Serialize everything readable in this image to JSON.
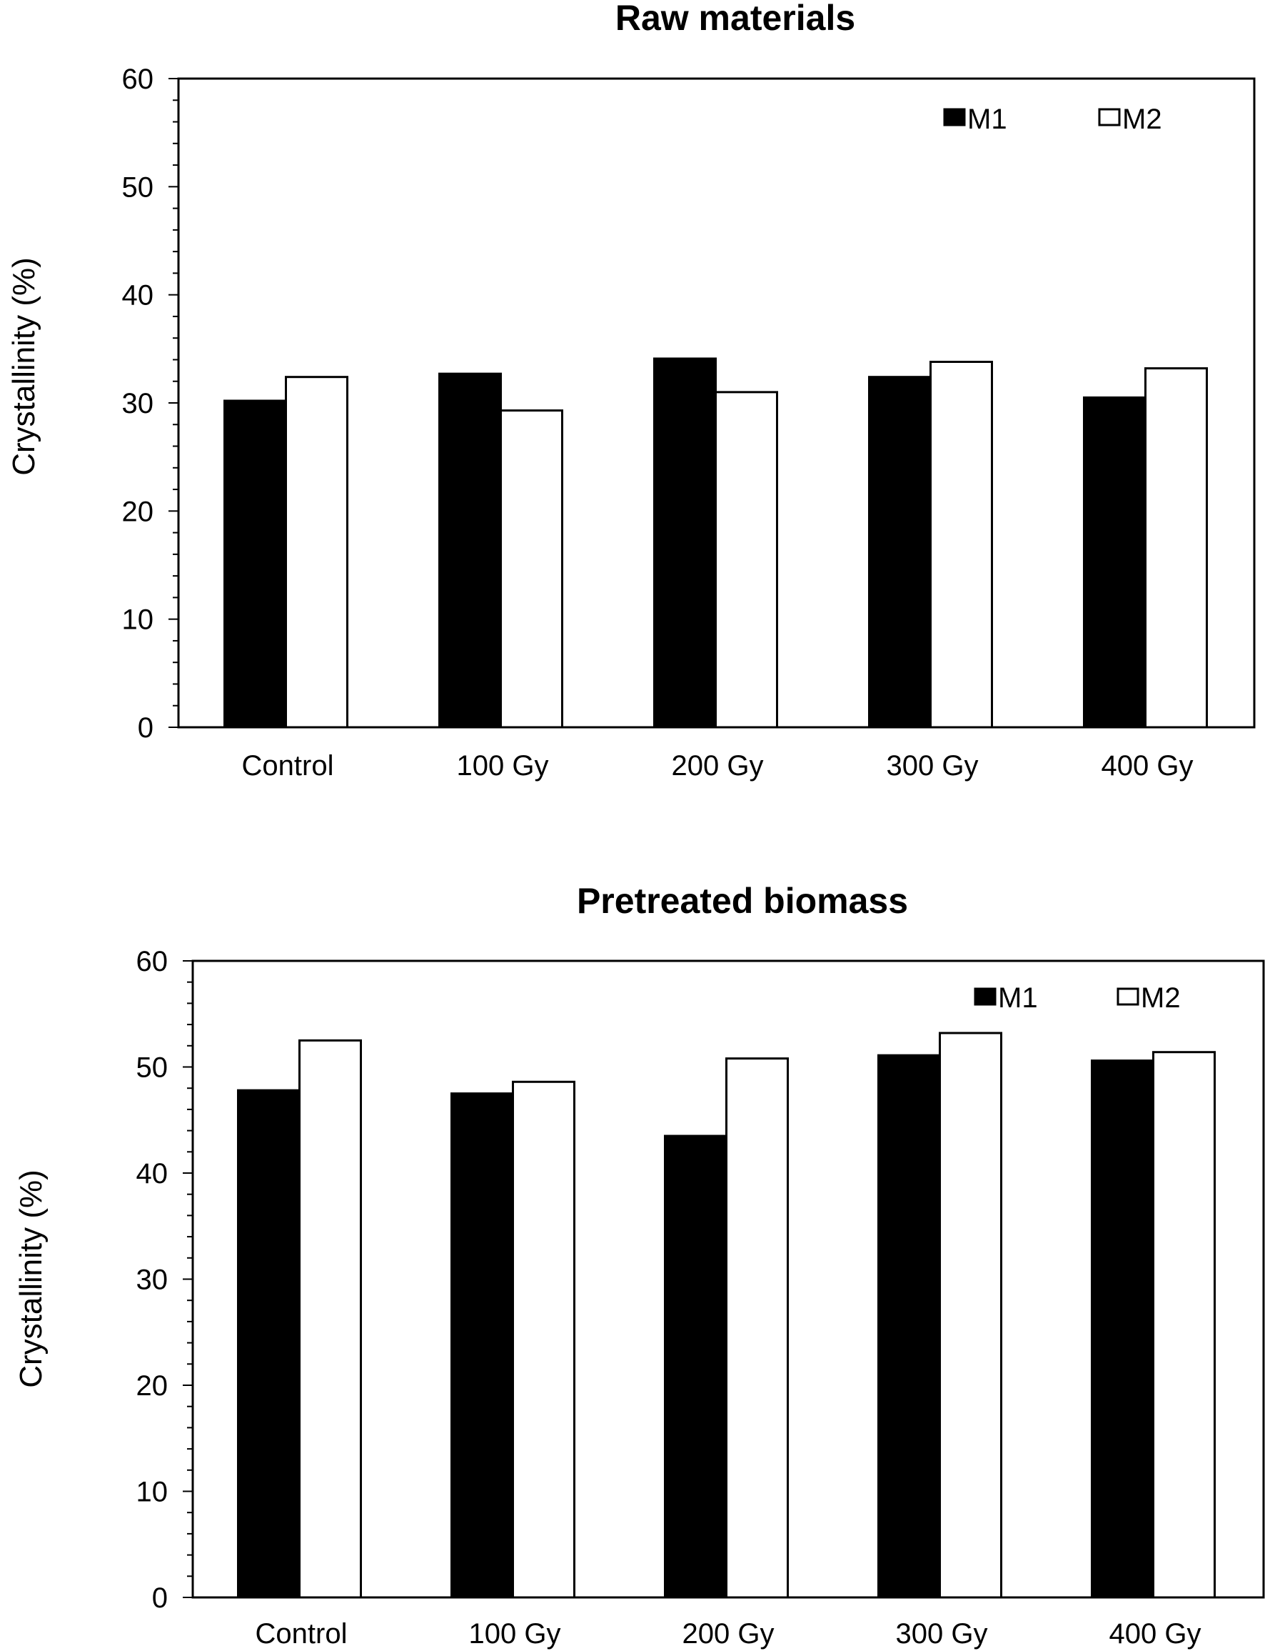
{
  "chart_data": [
    {
      "type": "bar",
      "title": "Raw materials",
      "xlabel": "",
      "ylabel": "Crystallinity (%)",
      "ylim": [
        0,
        60
      ],
      "yticks": [
        "0",
        "10",
        "20",
        "30",
        "40",
        "50",
        "60"
      ],
      "categories": [
        "Control",
        "100 Gy",
        "200 Gy",
        "300 Gy",
        "400 Gy"
      ],
      "legend_position": "top-right",
      "grid": false,
      "series": [
        {
          "name": "M1",
          "color": "#000000",
          "values": [
            30.2,
            32.7,
            34.1,
            32.4,
            30.5
          ]
        },
        {
          "name": "M2",
          "color": "#ffffff",
          "values": [
            32.4,
            29.3,
            31.0,
            33.8,
            33.2
          ]
        }
      ]
    },
    {
      "type": "bar",
      "title": "Pretreated biomass",
      "xlabel": "",
      "ylabel": "Crystallinity (%)",
      "ylim": [
        0,
        60
      ],
      "yticks": [
        "0",
        "10",
        "20",
        "30",
        "40",
        "50",
        "60"
      ],
      "categories": [
        "Control",
        "100 Gy",
        "200 Gy",
        "300 Gy",
        "400 Gy"
      ],
      "legend_position": "top-right",
      "grid": false,
      "series": [
        {
          "name": "M1",
          "color": "#000000",
          "values": [
            47.8,
            47.5,
            43.5,
            51.1,
            50.6
          ]
        },
        {
          "name": "M2",
          "color": "#ffffff",
          "values": [
            52.5,
            48.6,
            50.8,
            53.2,
            51.4
          ]
        }
      ]
    }
  ]
}
